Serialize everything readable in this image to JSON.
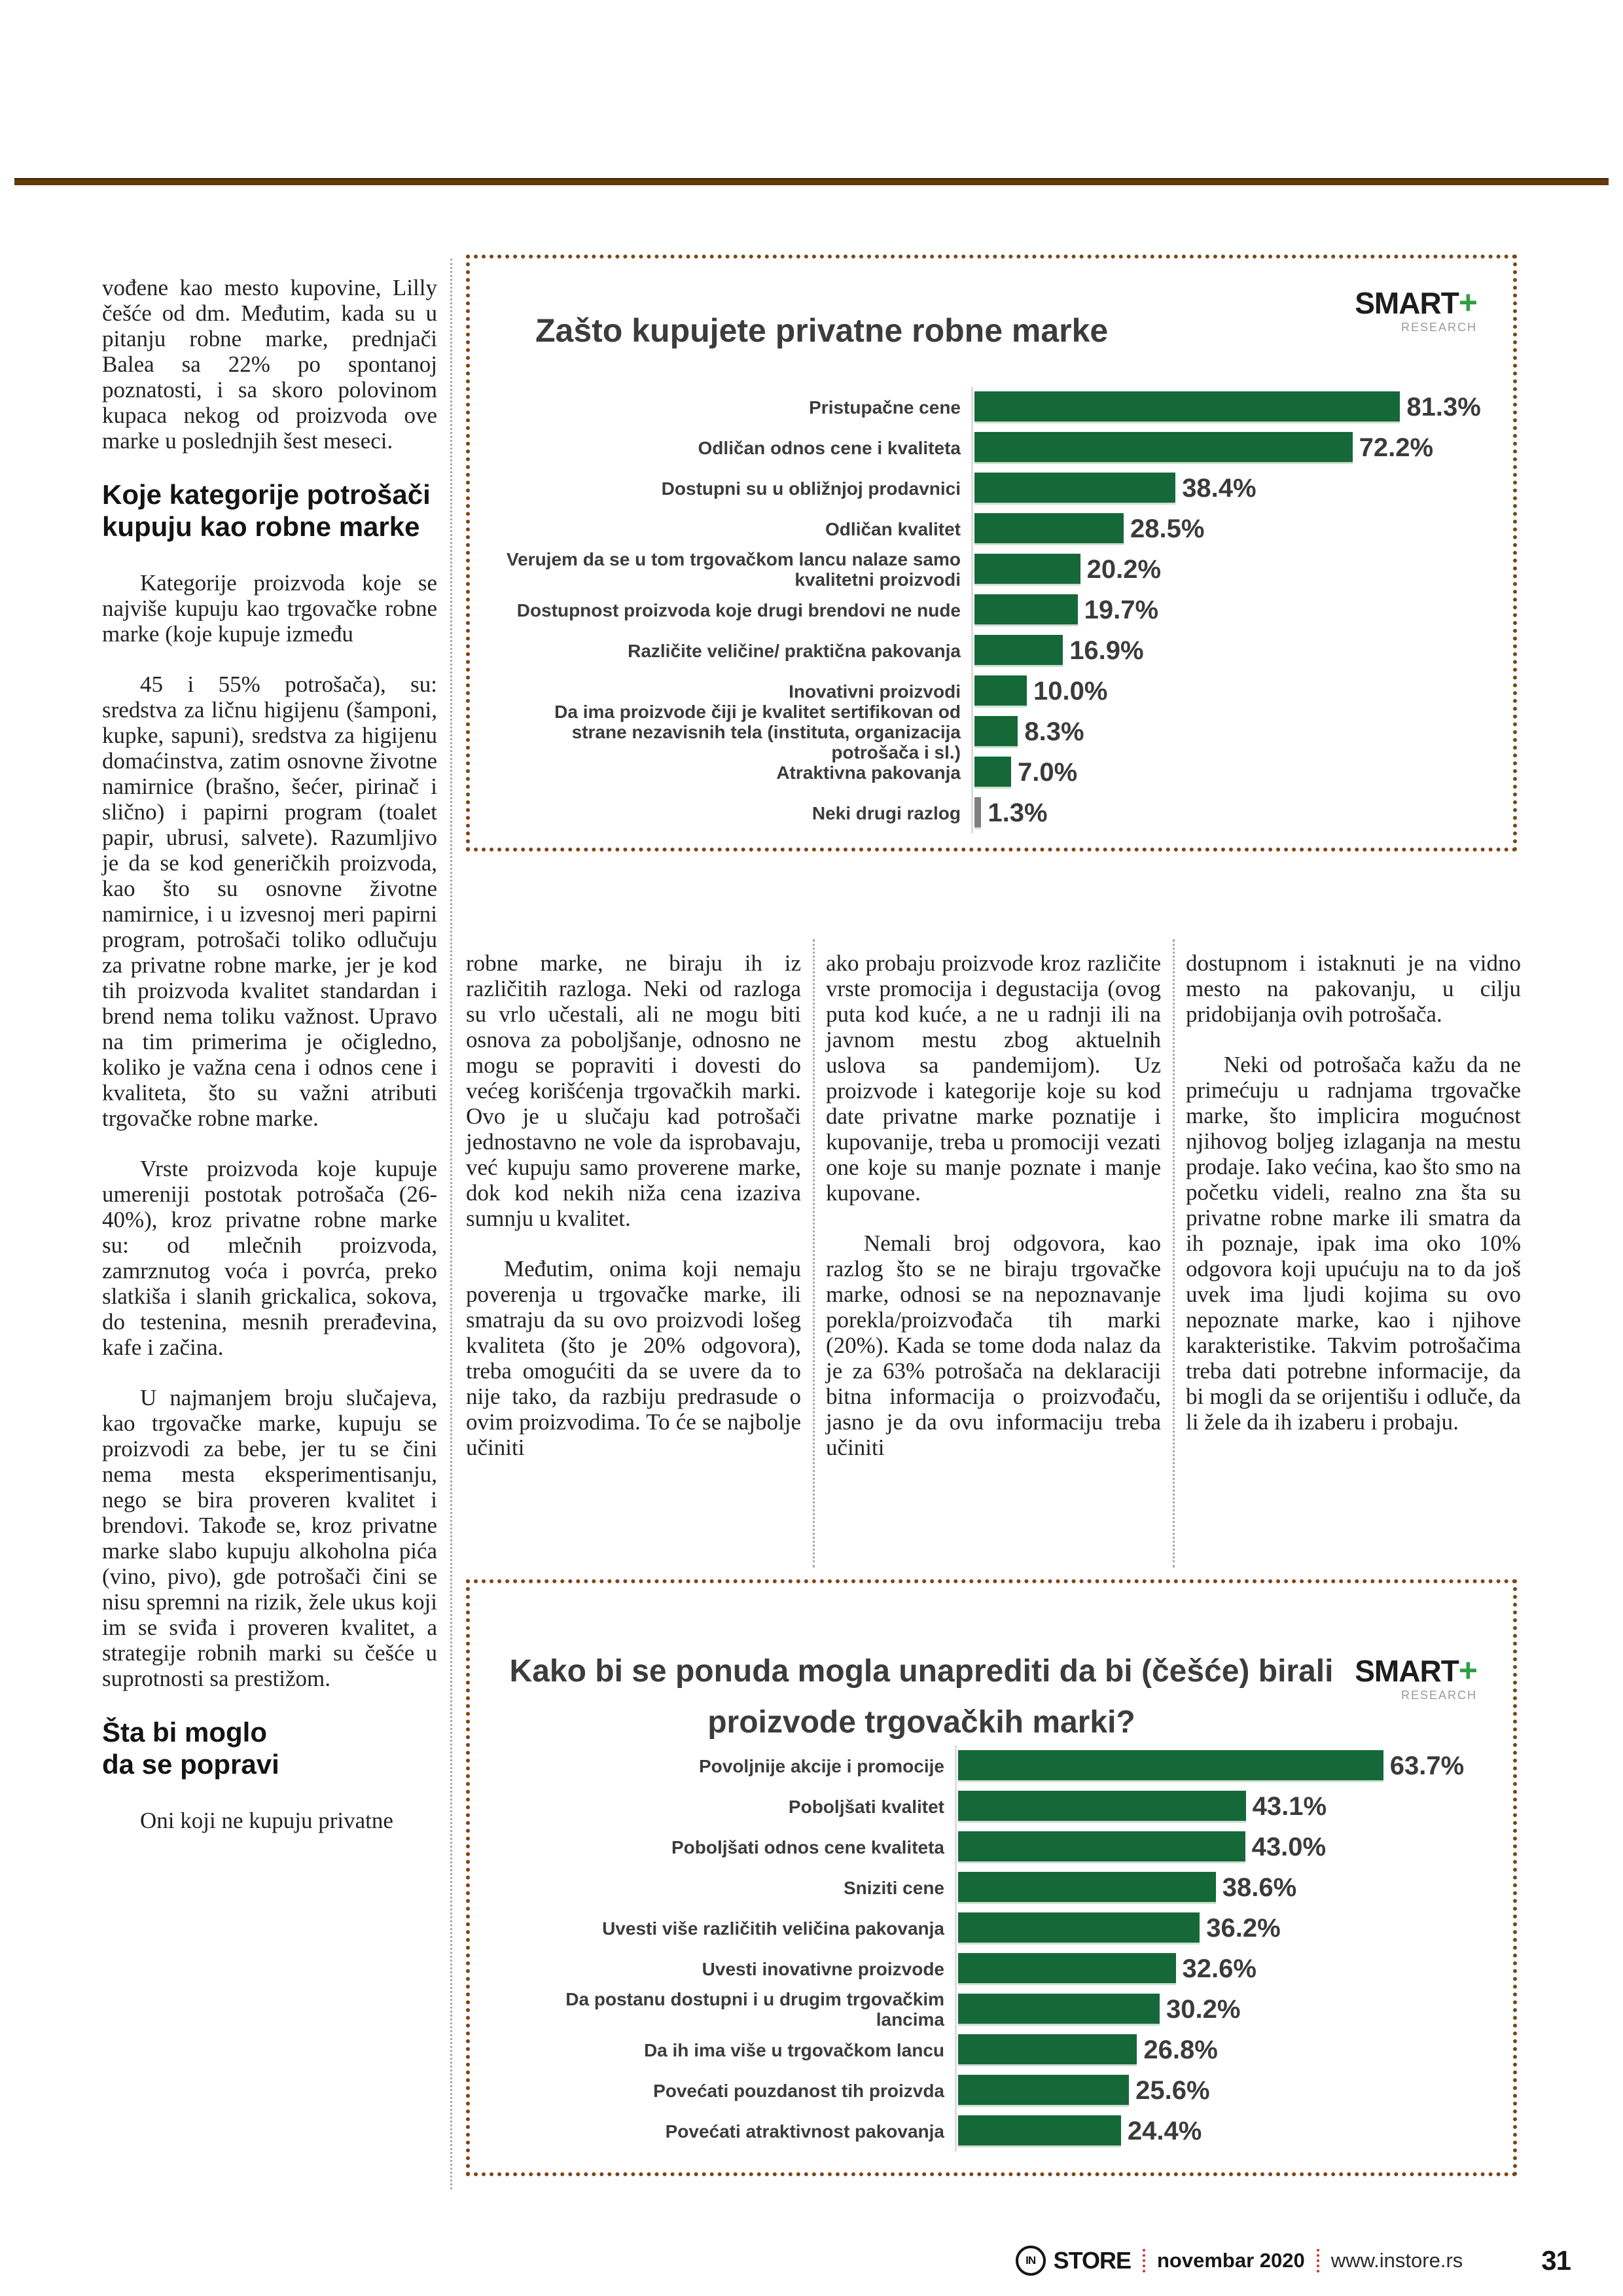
{
  "colors": {
    "rule_brown": "#63390e",
    "chart_border_brown": "#7e4512",
    "chart_green": "#156939",
    "other_reason_gray": "#7f7f7f",
    "footer_red": "#d03030"
  },
  "left_column": {
    "para1": "vođene kao mesto kupovine, Lilly češće od dm. Međutim, kada su u pitanju robne marke, prednjači Balea sa 22% po spontanoj poznatosti, i sa skoro polovinom kupaca nekog od proizvoda ove marke u poslednjih šest meseci.",
    "heading1": "Koje kategorije potrošači kupuju kao robne marke",
    "para2": "Kategorije proizvoda koje se najviše kupuju kao trgovačke robne marke (koje kupuje između",
    "para3": "45 i 55% potrošača), su: sredstva za ličnu higijenu (šamponi, kupke, sapuni), sredstva za higijenu domaćinstva, zatim osnovne životne namirnice (brašno, šećer, pirinač i slično) i papirni program (toalet papir, ubrusi, salvete). Razumljivo je da se kod generičkih proizvoda, kao što su osnovne životne namirnice, i u izvesnoj meri papirni program, potrošači toliko odlučuju za privatne robne marke, jer je kod tih proizvoda kvalitet standardan i brend nema toliku važnost. Upravo na tim primerima je očigledno, koliko je važna cena i odnos cene i kvaliteta, što su važni atributi trgovačke robne marke.",
    "para4": "Vrste proizvoda koje kupuje umereniji postotak potrošača (26-40%), kroz privatne robne marke su: od mlečnih proizvoda, zamrznutog voća i povrća, preko slatkiša i slanih grickalica, sokova, do testenina, mesnih prerađevina, kafe i začina.",
    "para5": "U najmanjem broju slučajeva, kao trgovačke marke, kupuju se proizvodi za bebe, jer tu se čini nema mesta eksperimentisanju, nego se bira proveren kvalitet i brendovi. Takođe se, kroz privatne marke slabo kupuju alkoholna pića (vino, pivo), gde potrošači čini se nisu spremni na rizik, žele ukus koji im se sviđa i proveren kvalitet, a strategije robnih marki su češće u suprotnosti sa prestižom.",
    "heading2_line1": "Šta bi moglo",
    "heading2_line2": "da se popravi",
    "para6": "Oni koji ne kupuju privatne"
  },
  "col2": {
    "para1": "robne marke, ne biraju ih iz različitih razloga. Neki od razloga su vrlo učestali, ali ne mogu biti osnova za poboljšanje, odnosno ne mogu se popraviti i dovesti do većeg korišćenja trgovačkih marki. Ovo je u slučaju kad potrošači jednostavno ne vole da isprobavaju, već kupuju samo proverene marke, dok kod nekih niža cena izaziva sumnju u kvalitet.",
    "para2": "Međutim, onima koji nemaju poverenja u trgovačke marke, ili smatraju da su ovo proizvodi lošeg kvaliteta (što je 20% odgovora), treba omogućiti da se uvere da to nije tako, da razbiju predrasude o ovim proizvodima. To će se najbolje učiniti"
  },
  "col3": {
    "para1": "ako probaju proizvode kroz različite vrste promocija i degustacija (ovog puta kod kuće, a ne u radnji ili na javnom mestu zbog aktuelnih uslova sa pandemijom). Uz proizvode i kategorije koje su kod date privatne marke poznatije i kupovanije, treba u promociji vezati one koje su manje poznate i manje kupovane.",
    "para2": "Nemali broj odgovora, kao razlog što se ne biraju trgovačke marke, odnosi se na nepoznavanje porekla/proizvođača tih marki (20%). Kada se tome doda nalaz da je za 63% potrošača na deklaraciji bitna informacija o proizvođaču, jasno je da ovu informaciju treba učiniti"
  },
  "col4": {
    "para1": "dostupnom i istaknuti je na vidno mesto na pakovanju, u cilju pridobijanja ovih potrošača.",
    "para2": "Neki od potrošača kažu da ne primećuju u radnjama trgovačke marke, što implicira mogućnost njihovog boljeg izlaganja na mestu prodaje. Iako većina, kao što smo na početku videli, realno zna šta su privatne robne marke ili smatra da ih poznaje, ipak ima oko 10% odgovora koji upućuju na to da još uvek ima ljudi kojima su ovo nepoznate marke, kao i njihove karakteristike. Takvim potrošačima treba dati potrebne informacije, da bi mogli da se orijentišu i odluče, da li žele da ih izaberu i probaju."
  },
  "logo": {
    "name": "SMART",
    "plus": "+",
    "sub": "RESEARCH"
  },
  "chart_data": [
    {
      "type": "bar",
      "orientation": "horizontal",
      "title": "Zašto kupujete privatne robne marke",
      "categories": [
        "Pristupačne cene",
        "Odličan odnos cene i kvaliteta",
        "Dostupni su u obližnjoj prodavnici",
        "Odličan kvalitet",
        "Verujem da se u tom trgovačkom lancu nalaze samo kvalitetni proizvodi",
        "Dostupnost proizvoda koje drugi brendovi ne nude",
        "Različite veličine/ praktična pakovanja",
        "Inovativni proizvodi",
        "Da ima proizvode čiji je kvalitet sertifikovan od strane nezavisnih tela (instituta, organizacija potrošača i sl.)",
        "Atraktivna pakovanja",
        "Neki drugi razlog"
      ],
      "values": [
        81.3,
        72.2,
        38.4,
        28.5,
        20.2,
        19.7,
        16.9,
        10.0,
        8.3,
        7.0,
        1.3
      ],
      "value_suffix": "%",
      "bar_color": "#156939",
      "gray_rows": [
        10
      ],
      "gray_color": "#7f7f7f",
      "xlabel": "",
      "ylabel": "",
      "grid": false,
      "legend": "none"
    },
    {
      "type": "bar",
      "orientation": "horizontal",
      "title": "Kako bi se ponuda mogla unaprediti da bi (češće) birali proizvode trgovačkih marki?",
      "categories": [
        "Povoljnije akcije i promocije",
        "Poboljšati kvalitet",
        "Poboljšati odnos cene kvaliteta",
        "Sniziti cene",
        "Uvesti više različitih veličina pakovanja",
        "Uvesti inovativne proizvode",
        "Da postanu dostupni i u drugim trgovačkim lancima",
        "Da ih ima više u trgovačkom lancu",
        "Povećati pouzdanost tih proizvda",
        "Povećati atraktivnost pakovanja"
      ],
      "values": [
        63.7,
        43.1,
        43.0,
        38.6,
        36.2,
        32.6,
        30.2,
        26.8,
        25.6,
        24.4
      ],
      "value_suffix": "%",
      "bar_color": "#156939",
      "gray_rows": [],
      "gray_color": "#7f7f7f",
      "xlabel": "",
      "ylabel": "",
      "grid": false,
      "legend": "none"
    }
  ],
  "footer": {
    "logo_text": "IN",
    "brand": "STORE",
    "issue": "novembar 2020",
    "site": "www.instore.rs",
    "page_number": "31"
  }
}
